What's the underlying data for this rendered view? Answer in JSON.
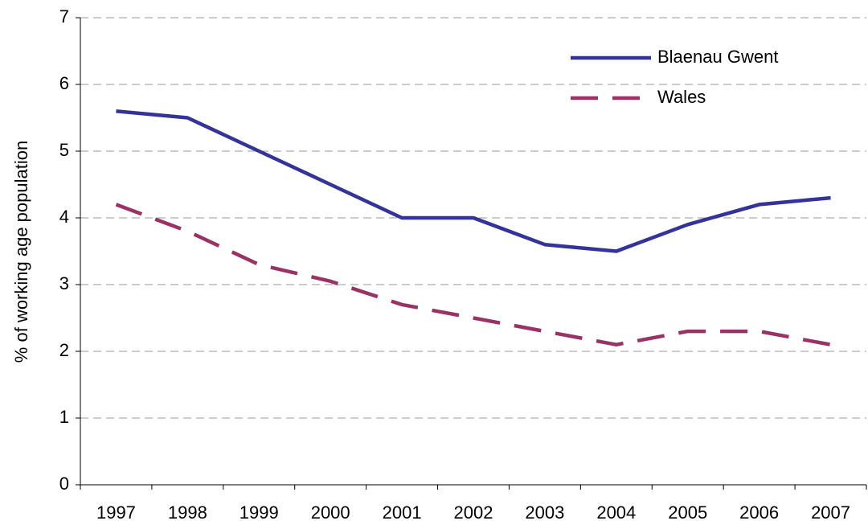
{
  "chart_data": {
    "type": "line",
    "y_label": "% of working age population",
    "categories": [
      "1997",
      "1998",
      "1999",
      "2000",
      "2001",
      "2002",
      "2003",
      "2004",
      "2005",
      "2006",
      "2007"
    ],
    "series": [
      {
        "name": "Blaenau Gwent",
        "color": "#333399",
        "dash": "solid",
        "values": [
          5.6,
          5.5,
          5.0,
          4.5,
          4.0,
          4.0,
          3.6,
          3.5,
          3.9,
          4.2,
          4.3
        ]
      },
      {
        "name": "Wales",
        "color": "#993366",
        "dash": "dashed",
        "values": [
          4.2,
          3.8,
          3.3,
          3.05,
          2.7,
          2.5,
          2.3,
          2.1,
          2.3,
          2.3,
          2.1
        ]
      }
    ],
    "ylim": [
      0,
      7
    ],
    "yticks": [
      0,
      1,
      2,
      3,
      4,
      5,
      6,
      7
    ],
    "grid": true,
    "legend": "top-right"
  }
}
